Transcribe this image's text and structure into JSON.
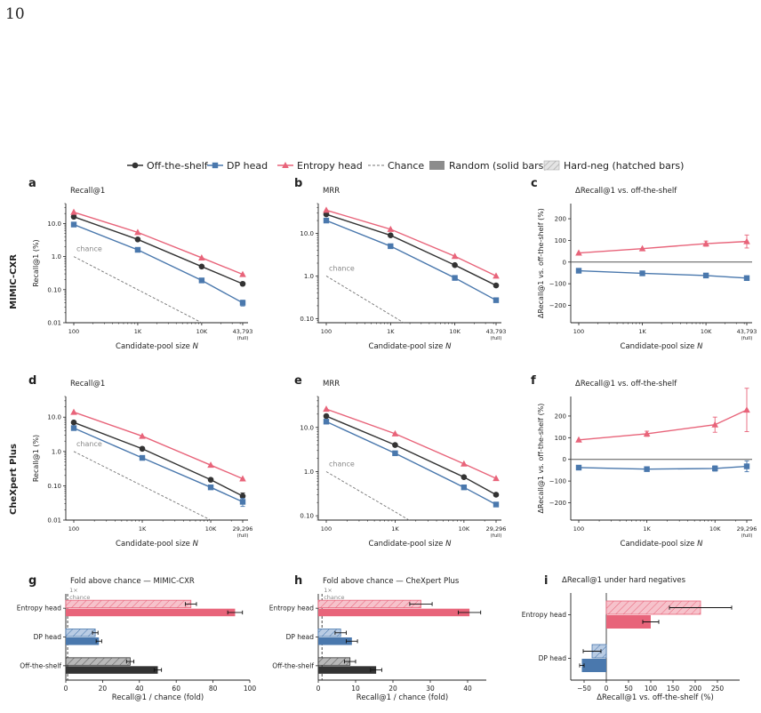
{
  "page_number": "10",
  "colors": {
    "offshelf": "#333333",
    "dp": "#4a78ad",
    "entropy": "#e8647a",
    "chance": "#777777",
    "random": "#8c8c8c",
    "hardneg": "#c8c8c8"
  },
  "legend": [
    {
      "label": "Off-the-shelf",
      "kind": "line-circle",
      "color": "#333333"
    },
    {
      "label": "DP head",
      "kind": "line-square",
      "color": "#4a78ad"
    },
    {
      "label": "Entropy head",
      "kind": "line-triangle",
      "color": "#e8647a"
    },
    {
      "label": "Chance",
      "kind": "dashed",
      "color": "#777777"
    },
    {
      "label": "Random (solid bars)",
      "kind": "solid",
      "color": "#8c8c8c"
    },
    {
      "label": "Hard-neg (hatched bars)",
      "kind": "hatched",
      "color": "#c8c8c8"
    }
  ],
  "row_labels": [
    "MIMIC-CXR",
    "CheXpert Plus"
  ],
  "chart_data": [
    {
      "panel": "a",
      "type": "line",
      "title": "Recall@1",
      "xlabel": "Candidate-pool size N",
      "ylabel": "Recall@1 (%)",
      "xscale": "log",
      "yscale": "log",
      "ylim": [
        0.01,
        40
      ],
      "x": [
        100,
        1000,
        10000,
        43793
      ],
      "xtick_labels": [
        "100",
        "1K",
        "10K",
        "43,793",
        "(full)"
      ],
      "ytick_labels": [
        "0.01",
        "0.10",
        "1.0",
        "10.0"
      ],
      "series": [
        {
          "name": "Off-the-shelf",
          "values": [
            16,
            3.3,
            0.5,
            0.15
          ]
        },
        {
          "name": "DP head",
          "values": [
            9.3,
            1.6,
            0.19,
            0.04
          ],
          "err": [
            0,
            0,
            0,
            0.008
          ]
        },
        {
          "name": "Entropy head",
          "values": [
            22,
            5.4,
            0.92,
            0.29
          ]
        }
      ],
      "chance": {
        "label": "chance",
        "x": [
          100,
          10000
        ],
        "values": [
          1.0,
          0.01
        ]
      }
    },
    {
      "panel": "b",
      "type": "line",
      "title": "MRR",
      "xlabel": "Candidate-pool size N",
      "ylabel": "",
      "xscale": "log",
      "yscale": "log",
      "ylim": [
        0.08,
        50
      ],
      "x": [
        100,
        1000,
        10000,
        43793
      ],
      "xtick_labels": [
        "100",
        "1K",
        "10K",
        "43,793",
        "(full)"
      ],
      "ytick_labels": [
        "0.10",
        "1.0",
        "10.0"
      ],
      "series": [
        {
          "name": "Off-the-shelf",
          "values": [
            28,
            9.0,
            1.8,
            0.6
          ]
        },
        {
          "name": "DP head",
          "values": [
            20,
            5.0,
            0.9,
            0.27
          ]
        },
        {
          "name": "Entropy head",
          "values": [
            35,
            12.5,
            2.9,
            1.0
          ]
        }
      ],
      "chance": {
        "label": "chance",
        "x": [
          100,
          1600
        ],
        "values": [
          1.0,
          0.08
        ]
      }
    },
    {
      "panel": "c",
      "type": "line",
      "title": "ΔRecall@1 vs. off-the-shelf",
      "xlabel": "Candidate-pool size N",
      "ylabel": "ΔRecall@1 vs. off-the-shelf (%)",
      "xscale": "log",
      "ylim": [
        -280,
        270
      ],
      "x": [
        100,
        1000,
        10000,
        43793
      ],
      "xtick_labels": [
        "100",
        "1K",
        "10K",
        "43,793",
        "(full)"
      ],
      "ytick_labels": [
        "−200",
        "−100",
        "0",
        "100",
        "200"
      ],
      "series": [
        {
          "name": "DP head",
          "values": [
            -40,
            -52,
            -62,
            -74
          ]
        },
        {
          "name": "Entropy head",
          "values": [
            42,
            62,
            85,
            95
          ],
          "err": [
            0,
            0,
            12,
            30
          ]
        }
      ]
    },
    {
      "panel": "d",
      "type": "line",
      "title": "Recall@1",
      "xlabel": "Candidate-pool size N",
      "ylabel": "Recall@1 (%)",
      "xscale": "log",
      "yscale": "log",
      "ylim": [
        0.01,
        40
      ],
      "x": [
        100,
        1000,
        10000,
        29296
      ],
      "xtick_labels": [
        "100",
        "1K",
        "10K",
        "29,296",
        "(full)"
      ],
      "ytick_labels": [
        "0.01",
        "0.10",
        "1.0",
        "10.0"
      ],
      "series": [
        {
          "name": "Off-the-shelf",
          "values": [
            7.0,
            1.2,
            0.15,
            0.05
          ],
          "err": [
            0,
            0,
            0,
            0.012
          ]
        },
        {
          "name": "DP head",
          "values": [
            4.8,
            0.65,
            0.09,
            0.034
          ],
          "err": [
            0,
            0,
            0,
            0.009
          ]
        },
        {
          "name": "Entropy head",
          "values": [
            14,
            2.8,
            0.4,
            0.16
          ]
        }
      ],
      "chance": {
        "label": "chance",
        "x": [
          100,
          10000
        ],
        "values": [
          1.0,
          0.01
        ]
      }
    },
    {
      "panel": "e",
      "type": "line",
      "title": "MRR",
      "xlabel": "Candidate-pool size N",
      "ylabel": "",
      "xscale": "log",
      "yscale": "log",
      "ylim": [
        0.08,
        50
      ],
      "x": [
        100,
        1000,
        10000,
        29296
      ],
      "xtick_labels": [
        "100",
        "1K",
        "10K",
        "29,296",
        "(full)"
      ],
      "ytick_labels": [
        "0.10",
        "1.0",
        "10.0"
      ],
      "series": [
        {
          "name": "Off-the-shelf",
          "values": [
            18,
            4.0,
            0.75,
            0.3
          ]
        },
        {
          "name": "DP head",
          "values": [
            13.5,
            2.6,
            0.44,
            0.18
          ]
        },
        {
          "name": "Entropy head",
          "values": [
            26,
            7.2,
            1.5,
            0.7
          ]
        }
      ],
      "chance": {
        "label": "chance",
        "x": [
          100,
          1600
        ],
        "values": [
          1.0,
          0.08
        ]
      }
    },
    {
      "panel": "f",
      "type": "line",
      "title": "ΔRecall@1 vs. off-the-shelf",
      "xlabel": "Candidate-pool size N",
      "ylabel": "ΔRecall@1 vs. off-the-shelf (%)",
      "xscale": "log",
      "ylim": [
        -280,
        290
      ],
      "x": [
        100,
        1000,
        10000,
        29296
      ],
      "xtick_labels": [
        "100",
        "1K",
        "10K",
        "29,296",
        "(full)"
      ],
      "ytick_labels": [
        "−200",
        "−100",
        "0",
        "100",
        "200"
      ],
      "series": [
        {
          "name": "DP head",
          "values": [
            -38,
            -45,
            -42,
            -32
          ],
          "err": [
            0,
            0,
            12,
            25
          ]
        },
        {
          "name": "Entropy head",
          "values": [
            90,
            118,
            160,
            228
          ],
          "err": [
            0,
            12,
            35,
            100
          ]
        }
      ]
    },
    {
      "panel": "g",
      "type": "bar",
      "orientation": "horizontal",
      "title": "Fold above chance — MIMIC-CXR",
      "xlabel": "Recall@1 / chance (fold)",
      "xlim": [
        0,
        100
      ],
      "xtick_labels": [
        "0",
        "20",
        "40",
        "60",
        "80",
        "100"
      ],
      "annotation": [
        "1×",
        "chance"
      ],
      "categories": [
        "Entropy head",
        "DP head",
        "Off-the-shelf"
      ],
      "series": [
        {
          "name": "Hard-neg (hatched bars)",
          "values": [
            68,
            16,
            35
          ],
          "err": [
            3,
            1.5,
            2
          ]
        },
        {
          "name": "Random (solid bars)",
          "values": [
            92,
            18,
            50
          ],
          "err": [
            4,
            1.5,
            2
          ]
        }
      ]
    },
    {
      "panel": "h",
      "type": "bar",
      "orientation": "horizontal",
      "title": "Fold above chance — CheXpert Plus",
      "xlabel": "Recall@1 / chance (fold)",
      "xlim": [
        0,
        45
      ],
      "xtick_labels": [
        "0",
        "10",
        "20",
        "30",
        "40"
      ],
      "annotation": [
        "1×",
        "chance"
      ],
      "categories": [
        "Entropy head",
        "DP head",
        "Off-the-shelf"
      ],
      "series": [
        {
          "name": "Hard-neg (hatched bars)",
          "values": [
            27.5,
            6,
            8.5
          ],
          "err": [
            3,
            1.5,
            1.5
          ]
        },
        {
          "name": "Random (solid bars)",
          "values": [
            40.5,
            9,
            15.5
          ],
          "err": [
            3,
            1.5,
            1.5
          ]
        }
      ]
    },
    {
      "panel": "i",
      "type": "bar",
      "orientation": "horizontal",
      "title": "ΔRecall@1 under hard negatives",
      "xlabel": "ΔRecall@1 vs. off-the-shelf (%)",
      "xlim": [
        -80,
        300
      ],
      "xtick_labels": [
        "−50",
        "0",
        "50",
        "100",
        "150",
        "200",
        "250"
      ],
      "categories": [
        "Entropy head",
        "DP head"
      ],
      "series": [
        {
          "name": "Hard-neg (hatched bars)",
          "values": [
            212,
            -32
          ],
          "err": [
            70,
            20
          ]
        },
        {
          "name": "Random (solid bars)",
          "values": [
            100,
            -55
          ],
          "err": [
            18,
            5
          ]
        }
      ]
    }
  ]
}
